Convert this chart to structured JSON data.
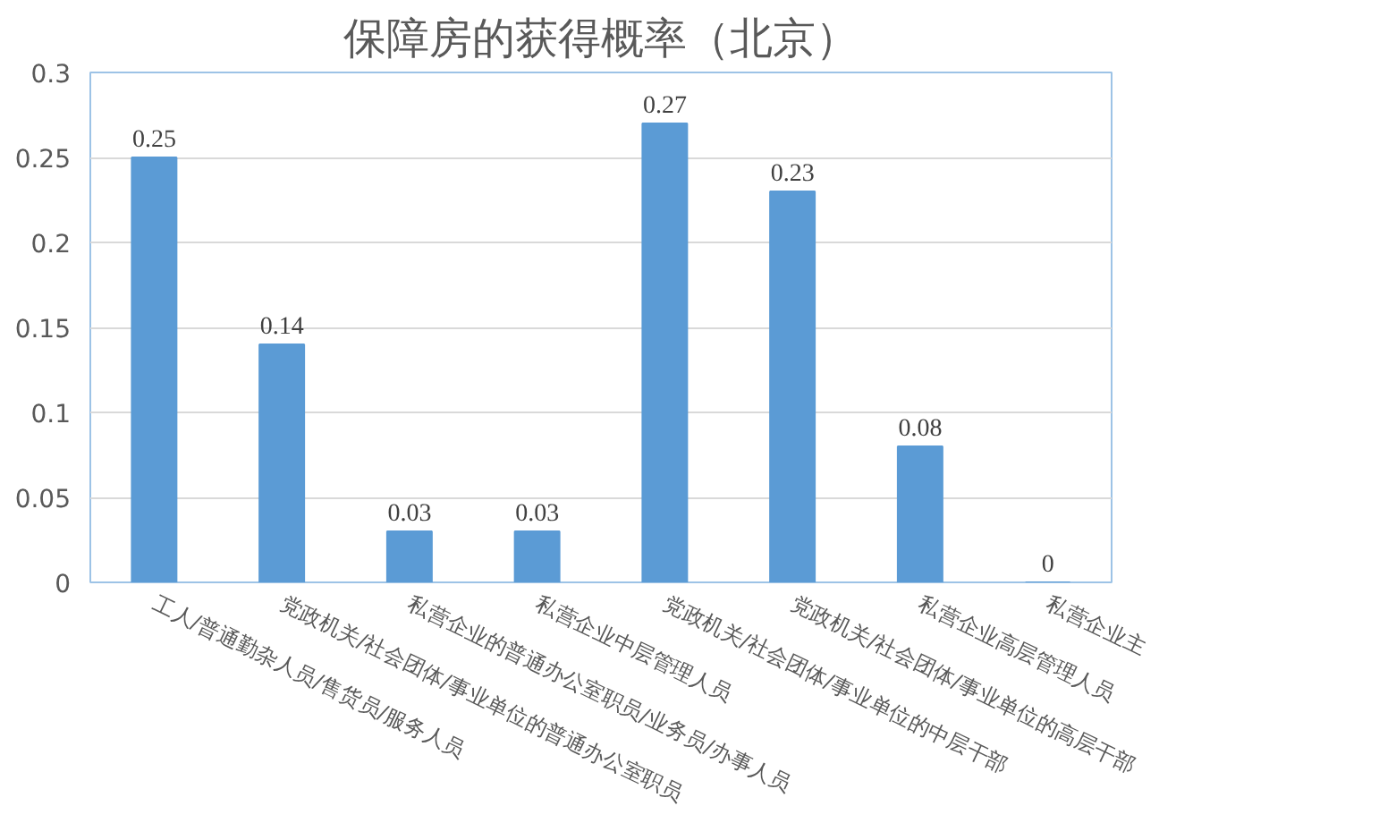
{
  "chart_data": {
    "type": "bar",
    "title": "保障房的获得概率（北京）",
    "categories": [
      "工人/普通勤杂人员/售货员/服务人员",
      "党政机关/社会团体/事业单位的普通办公室职员",
      "私营企业的普通办公室职员/业务员/办事人员",
      "私营企业中层管理人员",
      "党政机关/社会团体/事业单位的中层干部",
      "党政机关/社会团体/事业单位的高层干部",
      "私营企业高层管理人员",
      "私营企业主"
    ],
    "values": [
      0.25,
      0.14,
      0.03,
      0.03,
      0.27,
      0.23,
      0.08,
      0
    ],
    "color": "#5b9bd5",
    "ylim": [
      0,
      0.3
    ],
    "yticks": [
      0,
      0.05,
      0.1,
      0.15,
      0.2,
      0.25,
      0.3
    ],
    "grid": "y",
    "data_labels": true
  }
}
